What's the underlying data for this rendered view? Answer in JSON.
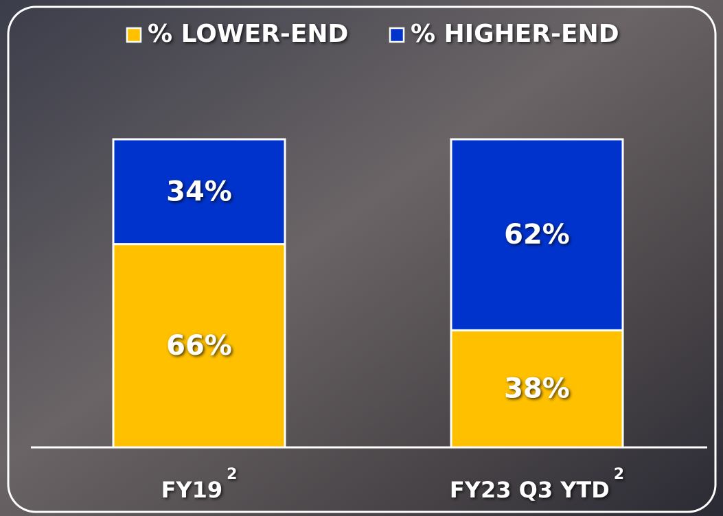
{
  "chart_data": {
    "type": "stacked-bar",
    "categories": [
      "FY19",
      "FY23 Q3 YTD"
    ],
    "category_footnotes": [
      "2",
      "2"
    ],
    "series": [
      {
        "name": "% LOWER-END",
        "color": "#ffc000",
        "values": [
          66,
          38
        ],
        "value_labels": [
          "66%",
          "38%"
        ]
      },
      {
        "name": "% HIGHER-END",
        "color": "#0033cc",
        "values": [
          34,
          62
        ],
        "value_labels": [
          "34%",
          "62%"
        ]
      }
    ],
    "ylim": [
      0,
      100
    ]
  }
}
